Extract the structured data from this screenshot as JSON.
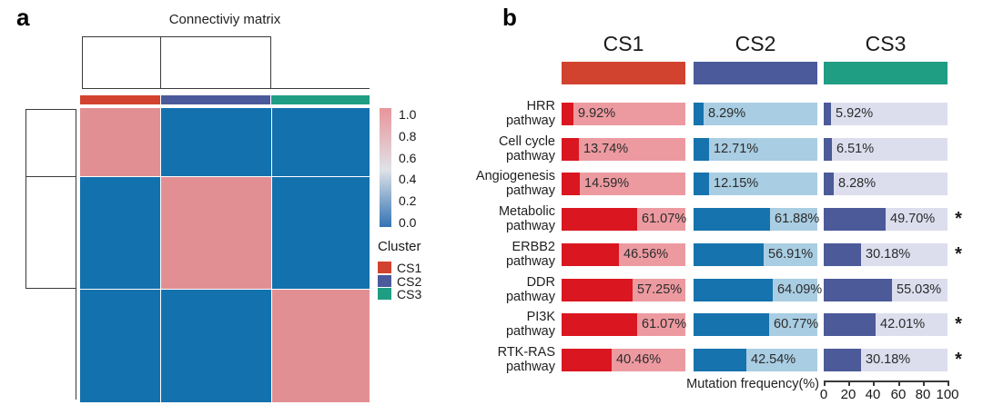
{
  "figure": {
    "panel_a_label": "a",
    "panel_b_label": "b"
  },
  "colors": {
    "cs1": "#d2432f",
    "cs2": "#4a5a9b",
    "cs3": "#1f9e84",
    "cs1_fill": "#da1620",
    "cs1_track": "#ec9aa0",
    "cs2_fill": "#1673ad",
    "cs2_track": "#a9cde2",
    "cs3_fill": "#4c5a99",
    "cs3_track": "#dcdeee",
    "heat_high": "#e28f94",
    "heat_low": "#1371ae",
    "colorbar_top": "#e8959a",
    "colorbar_mid": "#dfe2e8",
    "colorbar_bottom": "#3273b3"
  },
  "panel_a": {
    "title": "Connectiviy matrix",
    "colorbar_ticks": [
      "1.0",
      "0.8",
      "0.6",
      "0.4",
      "0.2",
      "0.0"
    ],
    "legend_title": "Cluster",
    "clusters": [
      {
        "label": "CS1",
        "color_key": "cs1"
      },
      {
        "label": "CS2",
        "color_key": "cs2"
      },
      {
        "label": "CS3",
        "color_key": "cs3"
      }
    ]
  },
  "panel_b": {
    "column_headers": [
      "CS1",
      "CS2",
      "CS3"
    ],
    "xaxis_label": "Mutation frequency(%)",
    "xaxis_ticks": [
      "0",
      "20",
      "40",
      "60",
      "80",
      "100"
    ],
    "significance_marker": "*"
  },
  "chart_data": [
    {
      "type": "heatmap",
      "title": "Connectiviy matrix",
      "rows": [
        "CS1",
        "CS2",
        "CS3"
      ],
      "cols": [
        "CS1",
        "CS2",
        "CS3"
      ],
      "matrix": [
        [
          1,
          0,
          0
        ],
        [
          0,
          1,
          0
        ],
        [
          0,
          0,
          1
        ]
      ],
      "colorscale": {
        "min": 0.0,
        "max": 1.0,
        "ticks": [
          1.0,
          0.8,
          0.6,
          0.4,
          0.2,
          0.0
        ],
        "high_color": "#e28f94",
        "low_color": "#1371ae"
      },
      "legend": {
        "title": "Cluster",
        "entries": [
          "CS1",
          "CS2",
          "CS3"
        ]
      },
      "annotation_colors": [
        "#d2432f",
        "#4a5a9b",
        "#1f9e84"
      ]
    },
    {
      "type": "bar",
      "orientation": "horizontal",
      "categories": [
        "HRR pathway",
        "Cell cycle pathway",
        "Angiogenesis pathway",
        "Metabolic pathway",
        "ERBB2 pathway",
        "DDR pathway",
        "PI3K pathway",
        "RTK-RAS pathway"
      ],
      "series": [
        {
          "name": "CS1",
          "values": [
            9.92,
            13.74,
            14.59,
            61.07,
            46.56,
            57.25,
            61.07,
            40.46
          ]
        },
        {
          "name": "CS2",
          "values": [
            8.29,
            12.71,
            12.15,
            61.88,
            56.91,
            64.09,
            60.77,
            42.54
          ]
        },
        {
          "name": "CS3",
          "values": [
            5.92,
            6.51,
            8.28,
            49.7,
            30.18,
            55.03,
            42.01,
            30.18
          ]
        }
      ],
      "value_label_format": "percent_2dp",
      "significant_rows": [
        false,
        false,
        false,
        true,
        true,
        false,
        true,
        true
      ],
      "xlabel": "Mutation frequency(%)",
      "xlim": [
        0,
        100
      ],
      "xticks": [
        0,
        20,
        40,
        60,
        80,
        100
      ],
      "legend_position": "top"
    }
  ]
}
